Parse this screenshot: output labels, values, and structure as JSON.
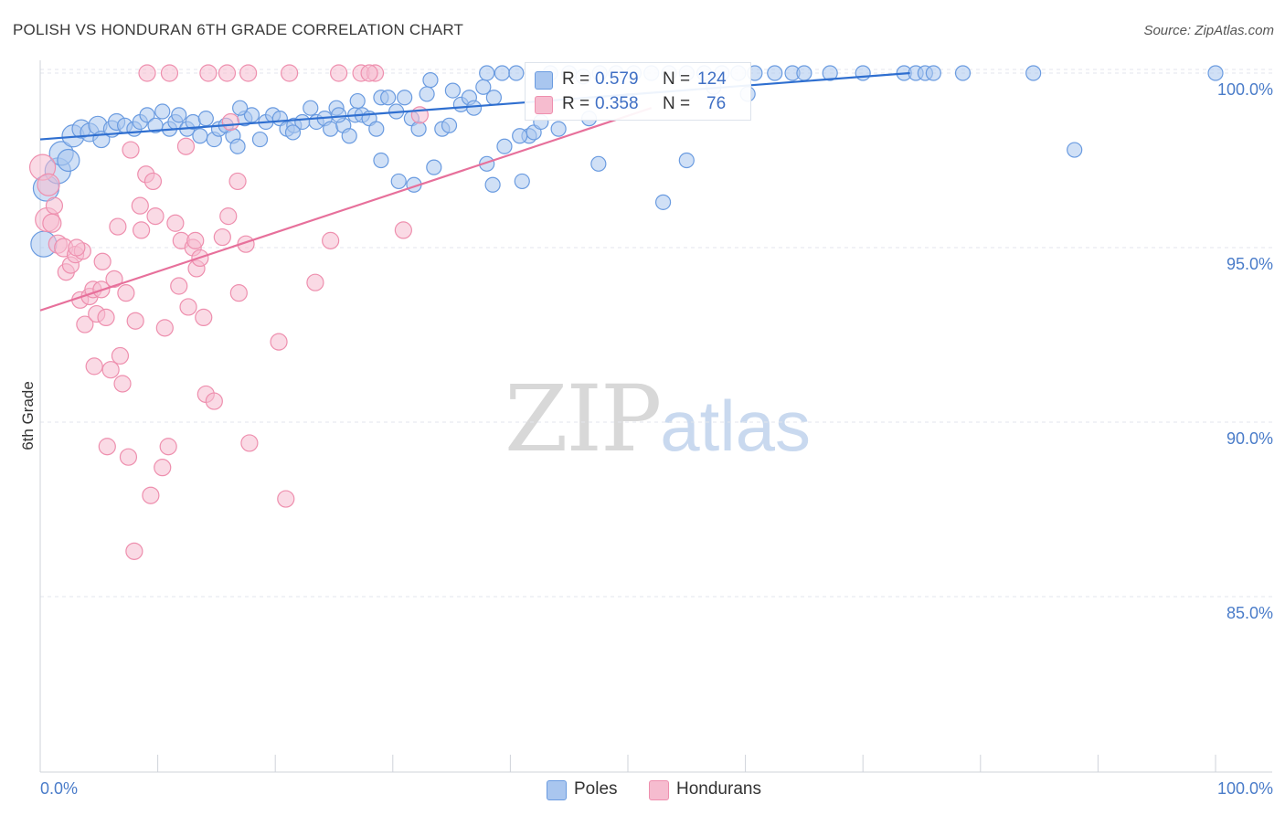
{
  "header": {
    "title": "POLISH VS HONDURAN 6TH GRADE CORRELATION CHART",
    "source": "Source: ZipAtlas.com"
  },
  "watermark": {
    "zip": "ZIP",
    "atlas": "atlas"
  },
  "legend": {
    "rows": [
      {
        "r_label": "R = ",
        "r_value": "0.579",
        "n_label": "N = ",
        "n_value": "124",
        "color": "#a9c6ef",
        "stroke": "#6a9be0"
      },
      {
        "r_label": "R = ",
        "r_value": "0.358",
        "n_label": "N = ",
        "n_value": "76",
        "color": "#f6bccf",
        "stroke": "#ee8fae"
      }
    ]
  },
  "bottom_legend": [
    {
      "label": "Poles",
      "color": "#a9c6ef",
      "stroke": "#6a9be0"
    },
    {
      "label": "Hondurans",
      "color": "#f6bccf",
      "stroke": "#ee8fae"
    }
  ],
  "chart_data": {
    "type": "scatter",
    "title": "POLISH VS HONDURAN 6TH GRADE CORRELATION CHART",
    "xlabel": "",
    "ylabel": "6th Grade",
    "xlim": [
      0,
      100
    ],
    "ylim": [
      80.5,
      100.5
    ],
    "x_tick_labels": [
      "0.0%",
      "100.0%"
    ],
    "y_ticks": [
      85,
      90,
      95,
      100
    ],
    "y_tick_labels": [
      "85.0%",
      "90.0%",
      "95.0%",
      "100.0%"
    ],
    "series": [
      {
        "name": "Poles",
        "color": "#6a9be0",
        "fill": "#a9c6ef",
        "trend": {
          "x": [
            0,
            74
          ],
          "y": [
            98.1,
            100.0
          ],
          "color": "#2f6fd0"
        },
        "points": [
          [
            0.3,
            95.1,
            14
          ],
          [
            0.5,
            96.7,
            14
          ],
          [
            1.5,
            97.2,
            14
          ],
          [
            1.8,
            97.7,
            13
          ],
          [
            2.4,
            97.5,
            12
          ],
          [
            2.8,
            98.2,
            12
          ],
          [
            3.5,
            98.4,
            10
          ],
          [
            4.2,
            98.3,
            10
          ],
          [
            4.9,
            98.5,
            10
          ],
          [
            5.2,
            98.1,
            9
          ],
          [
            6.1,
            98.4,
            9
          ],
          [
            6.5,
            98.6,
            9
          ],
          [
            7.2,
            98.5,
            8
          ],
          [
            8.0,
            98.4,
            8
          ],
          [
            8.5,
            98.6,
            8
          ],
          [
            9.1,
            98.8,
            8
          ],
          [
            9.8,
            98.5,
            8
          ],
          [
            10.4,
            98.9,
            8
          ],
          [
            11.0,
            98.4,
            8
          ],
          [
            11.5,
            98.6,
            8
          ],
          [
            12.5,
            98.4,
            8
          ],
          [
            13.0,
            98.6,
            8
          ],
          [
            13.6,
            98.2,
            8
          ],
          [
            14.1,
            98.7,
            8
          ],
          [
            14.8,
            98.1,
            8
          ],
          [
            15.2,
            98.4,
            8
          ],
          [
            15.8,
            98.5,
            8
          ],
          [
            16.4,
            98.2,
            8
          ],
          [
            16.8,
            97.9,
            8
          ],
          [
            17.4,
            98.7,
            8
          ],
          [
            18.0,
            98.8,
            8
          ],
          [
            18.7,
            98.1,
            8
          ],
          [
            19.2,
            98.6,
            8
          ],
          [
            19.8,
            98.8,
            8
          ],
          [
            20.4,
            98.7,
            8
          ],
          [
            21.0,
            98.4,
            8
          ],
          [
            21.6,
            98.5,
            8
          ],
          [
            22.3,
            98.6,
            8
          ],
          [
            23.0,
            99.0,
            8
          ],
          [
            23.5,
            98.6,
            8
          ],
          [
            24.2,
            98.7,
            8
          ],
          [
            24.7,
            98.4,
            8
          ],
          [
            25.2,
            99.0,
            8
          ],
          [
            25.8,
            98.5,
            8
          ],
          [
            26.3,
            98.2,
            8
          ],
          [
            26.8,
            98.8,
            8
          ],
          [
            27.4,
            98.8,
            8
          ],
          [
            28.0,
            98.7,
            8
          ],
          [
            28.6,
            98.4,
            8
          ],
          [
            29.0,
            99.3,
            8
          ],
          [
            29.6,
            99.3,
            8
          ],
          [
            30.3,
            98.9,
            8
          ],
          [
            31.0,
            99.3,
            8
          ],
          [
            31.6,
            98.7,
            8
          ],
          [
            32.2,
            98.4,
            8
          ],
          [
            33.2,
            99.8,
            8
          ],
          [
            34.2,
            98.4,
            8
          ],
          [
            35.1,
            99.5,
            8
          ],
          [
            35.8,
            99.1,
            8
          ],
          [
            36.5,
            99.3,
            8
          ],
          [
            37.7,
            99.6,
            8
          ],
          [
            38.0,
            100.0,
            8
          ],
          [
            38.6,
            99.3,
            8
          ],
          [
            39.3,
            100.0,
            8
          ],
          [
            40.5,
            100.0,
            8
          ],
          [
            41.6,
            98.2,
            8
          ],
          [
            42.0,
            98.3,
            8
          ],
          [
            43.4,
            100.0,
            8
          ],
          [
            45.0,
            100.0,
            8
          ],
          [
            46.2,
            99.9,
            8
          ],
          [
            47.6,
            100.0,
            8
          ],
          [
            49.0,
            100.0,
            8
          ],
          [
            50.5,
            100.0,
            8
          ],
          [
            52.0,
            100.0,
            8
          ],
          [
            53.5,
            100.0,
            8
          ],
          [
            55.0,
            100.0,
            8
          ],
          [
            56.5,
            100.0,
            8
          ],
          [
            58.0,
            100.0,
            8
          ],
          [
            59.4,
            100.0,
            8
          ],
          [
            60.8,
            100.0,
            8
          ],
          [
            62.5,
            100.0,
            8
          ],
          [
            64.0,
            100.0,
            8
          ],
          [
            65.0,
            100.0,
            8
          ],
          [
            67.2,
            100.0,
            8
          ],
          [
            70.0,
            100.0,
            8
          ],
          [
            73.5,
            100.0,
            8
          ],
          [
            74.5,
            100.0,
            8
          ],
          [
            75.3,
            100.0,
            8
          ],
          [
            76.0,
            100.0,
            8
          ],
          [
            78.5,
            100.0,
            8
          ],
          [
            84.5,
            100.0,
            8
          ],
          [
            100.0,
            100.0,
            8
          ],
          [
            29.0,
            97.5,
            8
          ],
          [
            30.5,
            96.9,
            8
          ],
          [
            31.8,
            96.8,
            8
          ],
          [
            33.5,
            97.3,
            8
          ],
          [
            38.5,
            96.8,
            8
          ],
          [
            41.0,
            96.9,
            8
          ],
          [
            47.5,
            97.4,
            8
          ],
          [
            53.0,
            96.3,
            8
          ],
          [
            55.0,
            97.5,
            8
          ],
          [
            88.0,
            97.8,
            8
          ],
          [
            39.5,
            97.9,
            8
          ],
          [
            38.0,
            97.4,
            8
          ],
          [
            21.5,
            98.3,
            8
          ],
          [
            25.4,
            98.8,
            8
          ],
          [
            34.8,
            98.5,
            8
          ],
          [
            40.8,
            98.2,
            8
          ],
          [
            44.1,
            98.4,
            8
          ],
          [
            11.8,
            98.8,
            8
          ],
          [
            17.0,
            99.0,
            8
          ],
          [
            27.0,
            99.2,
            8
          ],
          [
            32.9,
            99.4,
            8
          ],
          [
            36.9,
            99.0,
            8
          ],
          [
            42.6,
            98.6,
            8
          ],
          [
            46.7,
            98.7,
            8
          ],
          [
            50.0,
            99.2,
            8
          ],
          [
            57.3,
            99.6,
            8
          ],
          [
            60.2,
            99.4,
            8
          ]
        ]
      },
      {
        "name": "Hondurans",
        "color": "#ee8fae",
        "fill": "#f6bccf",
        "trend": {
          "x": [
            0,
            52
          ],
          "y": [
            93.2,
            99.0
          ],
          "color": "#e7709b"
        },
        "points": [
          [
            0.2,
            97.3,
            14
          ],
          [
            0.6,
            95.8,
            13
          ],
          [
            0.7,
            96.8,
            12
          ],
          [
            1.0,
            95.7,
            10
          ],
          [
            1.5,
            95.1,
            10
          ],
          [
            2.0,
            95.0,
            10
          ],
          [
            2.2,
            94.3,
            9
          ],
          [
            2.6,
            94.5,
            9
          ],
          [
            3.0,
            94.8,
            9
          ],
          [
            3.4,
            93.5,
            9
          ],
          [
            3.6,
            94.9,
            9
          ],
          [
            3.8,
            92.8,
            9
          ],
          [
            4.2,
            93.6,
            9
          ],
          [
            4.5,
            93.8,
            9
          ],
          [
            4.6,
            91.6,
            9
          ],
          [
            4.8,
            93.1,
            9
          ],
          [
            5.2,
            93.8,
            9
          ],
          [
            5.3,
            94.6,
            9
          ],
          [
            5.6,
            93.0,
            9
          ],
          [
            5.7,
            89.3,
            9
          ],
          [
            6.0,
            91.5,
            9
          ],
          [
            6.3,
            94.1,
            9
          ],
          [
            6.6,
            95.6,
            9
          ],
          [
            6.8,
            91.9,
            9
          ],
          [
            7.0,
            91.1,
            9
          ],
          [
            7.3,
            93.7,
            9
          ],
          [
            7.5,
            89.0,
            9
          ],
          [
            7.7,
            97.8,
            9
          ],
          [
            8.0,
            86.3,
            9
          ],
          [
            8.1,
            92.9,
            9
          ],
          [
            8.5,
            96.2,
            9
          ],
          [
            8.6,
            95.5,
            9
          ],
          [
            9.0,
            97.1,
            9
          ],
          [
            9.4,
            87.9,
            9
          ],
          [
            9.6,
            96.9,
            9
          ],
          [
            9.8,
            95.9,
            9
          ],
          [
            10.4,
            88.7,
            9
          ],
          [
            10.6,
            92.7,
            9
          ],
          [
            10.9,
            89.3,
            9
          ],
          [
            11.5,
            95.7,
            9
          ],
          [
            11.8,
            93.9,
            9
          ],
          [
            12.0,
            95.2,
            9
          ],
          [
            12.4,
            97.9,
            9
          ],
          [
            12.6,
            93.3,
            9
          ],
          [
            13.0,
            95.0,
            9
          ],
          [
            13.2,
            95.2,
            9
          ],
          [
            13.3,
            94.4,
            9
          ],
          [
            13.6,
            94.7,
            9
          ],
          [
            13.9,
            93.0,
            9
          ],
          [
            14.1,
            90.8,
            9
          ],
          [
            14.3,
            100.0,
            9
          ],
          [
            14.8,
            90.6,
            9
          ],
          [
            15.5,
            95.3,
            9
          ],
          [
            15.9,
            100.0,
            9
          ],
          [
            16.2,
            98.6,
            9
          ],
          [
            16.0,
            95.9,
            9
          ],
          [
            16.8,
            96.9,
            9
          ],
          [
            16.9,
            93.7,
            9
          ],
          [
            17.5,
            95.1,
            9
          ],
          [
            17.7,
            100.0,
            9
          ],
          [
            17.8,
            89.4,
            9
          ],
          [
            20.3,
            92.3,
            9
          ],
          [
            20.9,
            87.8,
            9
          ],
          [
            21.2,
            100.0,
            9
          ],
          [
            23.4,
            94.0,
            9
          ],
          [
            24.7,
            95.2,
            9
          ],
          [
            25.4,
            100.0,
            9
          ],
          [
            27.3,
            100.0,
            9
          ],
          [
            28.5,
            100.0,
            9
          ],
          [
            30.9,
            95.5,
            9
          ],
          [
            11.0,
            100.0,
            9
          ],
          [
            9.1,
            100.0,
            9
          ],
          [
            3.1,
            95.0,
            9
          ],
          [
            1.2,
            96.2,
            9
          ],
          [
            28.0,
            100.0,
            9
          ],
          [
            32.3,
            98.8,
            9
          ]
        ]
      }
    ]
  }
}
